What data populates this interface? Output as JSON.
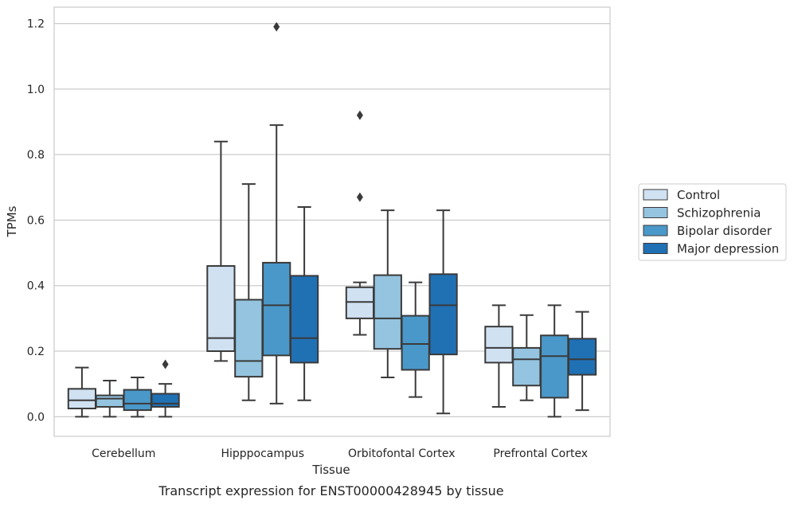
{
  "chart_data": {
    "type": "box",
    "caption": "Transcript expression for ENST00000428945 by tissue",
    "xlabel": "Tissue",
    "ylabel": "TPMs",
    "ylim": [
      -0.06,
      1.25
    ],
    "yticks": [
      0.0,
      0.2,
      0.4,
      0.6,
      0.8,
      1.0,
      1.2
    ],
    "ytick_labels": [
      "0.0",
      "0.2",
      "0.4",
      "0.6",
      "0.8",
      "1.0",
      "1.2"
    ],
    "grid": "horizontal",
    "legend_position": "right",
    "categories": [
      "Cerebellum",
      "Hipppocampus",
      "Orbitofontal Cortex",
      "Prefrontal Cortex"
    ],
    "series": [
      {
        "name": "Control",
        "color": "#d0e1f2",
        "boxes": [
          {
            "whislo": 0.0,
            "q1": 0.025,
            "med": 0.05,
            "q3": 0.085,
            "whishi": 0.15,
            "fliers": []
          },
          {
            "whislo": 0.17,
            "q1": 0.2,
            "med": 0.24,
            "q3": 0.46,
            "whishi": 0.84,
            "fliers": []
          },
          {
            "whislo": 0.25,
            "q1": 0.3,
            "med": 0.35,
            "q3": 0.395,
            "whishi": 0.41,
            "fliers": [
              0.67,
              0.92
            ]
          },
          {
            "whislo": 0.03,
            "q1": 0.165,
            "med": 0.21,
            "q3": 0.275,
            "whishi": 0.34,
            "fliers": []
          }
        ]
      },
      {
        "name": "Schizophrenia",
        "color": "#94c4df",
        "boxes": [
          {
            "whislo": 0.0,
            "q1": 0.03,
            "med": 0.055,
            "q3": 0.065,
            "whishi": 0.11,
            "fliers": []
          },
          {
            "whislo": 0.05,
            "q1": 0.122,
            "med": 0.17,
            "q3": 0.357,
            "whishi": 0.71,
            "fliers": []
          },
          {
            "whislo": 0.12,
            "q1": 0.207,
            "med": 0.3,
            "q3": 0.432,
            "whishi": 0.63,
            "fliers": []
          },
          {
            "whislo": 0.05,
            "q1": 0.095,
            "med": 0.175,
            "q3": 0.21,
            "whishi": 0.31,
            "fliers": []
          }
        ]
      },
      {
        "name": "Bipolar disorder",
        "color": "#4a98c9",
        "boxes": [
          {
            "whislo": 0.0,
            "q1": 0.02,
            "med": 0.04,
            "q3": 0.082,
            "whishi": 0.12,
            "fliers": []
          },
          {
            "whislo": 0.04,
            "q1": 0.187,
            "med": 0.34,
            "q3": 0.47,
            "whishi": 0.89,
            "fliers": [
              1.19
            ]
          },
          {
            "whislo": 0.06,
            "q1": 0.143,
            "med": 0.222,
            "q3": 0.308,
            "whishi": 0.41,
            "fliers": []
          },
          {
            "whislo": 0.0,
            "q1": 0.058,
            "med": 0.185,
            "q3": 0.248,
            "whishi": 0.34,
            "fliers": []
          }
        ]
      },
      {
        "name": "Major depression",
        "color": "#2070b4",
        "boxes": [
          {
            "whislo": 0.0,
            "q1": 0.03,
            "med": 0.04,
            "q3": 0.07,
            "whishi": 0.1,
            "fliers": [
              0.16
            ]
          },
          {
            "whislo": 0.05,
            "q1": 0.165,
            "med": 0.24,
            "q3": 0.43,
            "whishi": 0.64,
            "fliers": []
          },
          {
            "whislo": 0.01,
            "q1": 0.19,
            "med": 0.34,
            "q3": 0.435,
            "whishi": 0.63,
            "fliers": []
          },
          {
            "whislo": 0.02,
            "q1": 0.128,
            "med": 0.175,
            "q3": 0.238,
            "whishi": 0.32,
            "fliers": []
          }
        ]
      }
    ]
  }
}
